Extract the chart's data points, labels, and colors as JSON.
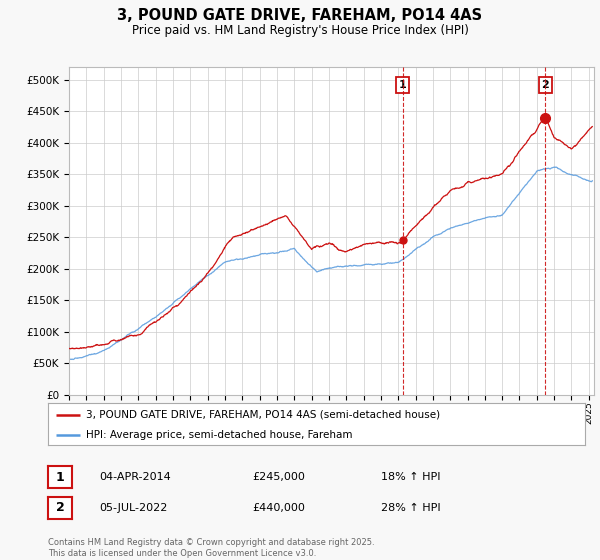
{
  "title": "3, POUND GATE DRIVE, FAREHAM, PO14 4AS",
  "subtitle": "Price paid vs. HM Land Registry's House Price Index (HPI)",
  "legend_line1": "3, POUND GATE DRIVE, FAREHAM, PO14 4AS (semi-detached house)",
  "legend_line2": "HPI: Average price, semi-detached house, Fareham",
  "annotation1_label": "1",
  "annotation1_date": "04-APR-2014",
  "annotation1_price": "£245,000",
  "annotation1_hpi": "18% ↑ HPI",
  "annotation2_label": "2",
  "annotation2_date": "05-JUL-2022",
  "annotation2_price": "£440,000",
  "annotation2_hpi": "28% ↑ HPI",
  "footnote": "Contains HM Land Registry data © Crown copyright and database right 2025.\nThis data is licensed under the Open Government Licence v3.0.",
  "hpi_color": "#5599dd",
  "price_color": "#cc1111",
  "background_color": "#f8f8f8",
  "plot_bg_color": "#ffffff",
  "ylim": [
    0,
    520000
  ],
  "yticks": [
    0,
    50000,
    100000,
    150000,
    200000,
    250000,
    300000,
    350000,
    400000,
    450000,
    500000
  ],
  "sale1_x": 2014.25,
  "sale1_y": 245000,
  "sale2_x": 2022.5,
  "sale2_y": 440000,
  "vline1_x": 2014.25,
  "vline2_x": 2022.5,
  "xlim_left": 1995,
  "xlim_right": 2025.3
}
